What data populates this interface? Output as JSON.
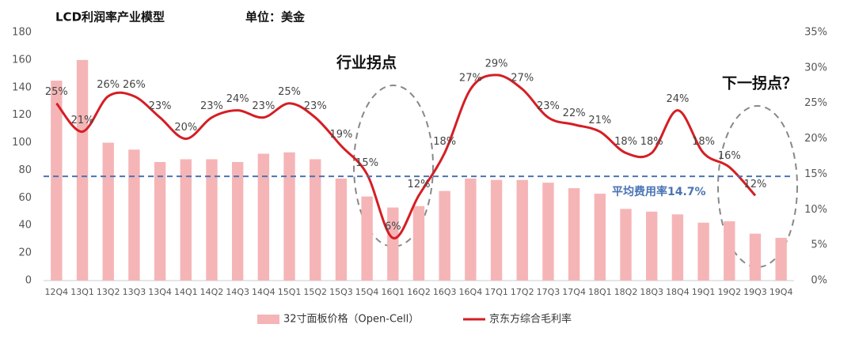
{
  "chart_data": {
    "type": "bar+line",
    "title": "LCD利润率产业模型",
    "subtitle": "单位：美金",
    "categories": [
      "12Q4",
      "13Q1",
      "13Q2",
      "13Q3",
      "13Q4",
      "14Q1",
      "14Q2",
      "14Q3",
      "14Q4",
      "15Q1",
      "15Q2",
      "15Q3",
      "15Q4",
      "16Q1",
      "16Q2",
      "16Q3",
      "16Q4",
      "17Q1",
      "17Q2",
      "17Q3",
      "17Q4",
      "18Q1",
      "18Q2",
      "18Q3",
      "18Q4",
      "19Q1",
      "19Q2",
      "19Q3",
      "19Q4"
    ],
    "series": [
      {
        "name": "32寸面板价格（Open-Cell）",
        "type": "bar",
        "color": "#f5b5b7",
        "values": [
          145,
          160,
          100,
          95,
          86,
          88,
          88,
          86,
          92,
          93,
          88,
          74,
          61,
          53,
          54,
          65,
          74,
          73,
          73,
          71,
          67,
          63,
          52,
          50,
          48,
          42,
          43,
          34,
          31
        ]
      },
      {
        "name": "京东方综合毛利率",
        "type": "line",
        "axis": "y2",
        "color": "#d51e24",
        "values": [
          25,
          21,
          26,
          26,
          23,
          20,
          23,
          24,
          23,
          25,
          23,
          19,
          15,
          6,
          12,
          18,
          27,
          29,
          27,
          23,
          22,
          21,
          18,
          18,
          24,
          18,
          16,
          12,
          null
        ],
        "value_labels": [
          "25%",
          "21%",
          "26%",
          "26%",
          "23%",
          "20%",
          "23%",
          "24%",
          "23%",
          "25%",
          "23%",
          "19%",
          "15%",
          "6%",
          "12%",
          "18%",
          "27%",
          "29%",
          "27%",
          "23%",
          "22%",
          "21%",
          "18%",
          "18%",
          "24%",
          "18%",
          "16%",
          "12%",
          null
        ]
      }
    ],
    "ylim": [
      0,
      180
    ],
    "yticks": [
      0,
      20,
      40,
      60,
      80,
      100,
      120,
      140,
      160,
      180
    ],
    "y2lim": [
      0,
      35
    ],
    "y2ticks": [
      {
        "value": 0,
        "label": "0%"
      },
      {
        "value": 5,
        "label": "5%"
      },
      {
        "value": 10,
        "label": "10%"
      },
      {
        "value": 15,
        "label": "15%"
      },
      {
        "value": 20,
        "label": "20%"
      },
      {
        "value": 25,
        "label": "25%"
      },
      {
        "value": 30,
        "label": "30%"
      },
      {
        "value": 35,
        "label": "35%"
      }
    ],
    "reference_line": {
      "value": 14.7,
      "axis": "y2",
      "label": "平均费用率14.7%",
      "color": "#4a74b4"
    },
    "annotations": [
      "行业拐点",
      "下一拐点？"
    ],
    "legend": "bottom"
  }
}
